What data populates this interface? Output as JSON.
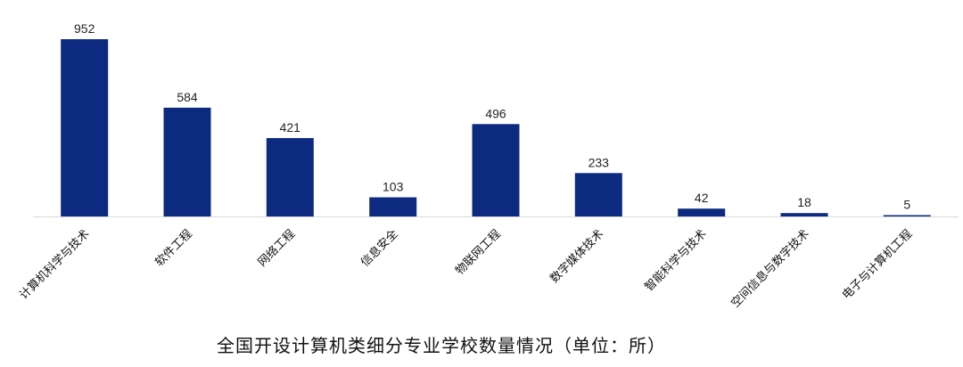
{
  "chart_data": {
    "type": "bar",
    "title": "全国开设计算机类细分专业学校数量情况（单位：所）",
    "xlabel": "",
    "ylabel": "",
    "categories": [
      "计算机科学与技术",
      "软件工程",
      "网络工程",
      "信息安全",
      "物联网工程",
      "数字媒体技术",
      "智能科学与技术",
      "空间信息与数字技术",
      "电子与计算机工程"
    ],
    "values": [
      952,
      584,
      421,
      103,
      496,
      233,
      42,
      18,
      5
    ],
    "ylim": [
      0,
      952
    ],
    "grid": false,
    "legend": "none",
    "bar_color": "#0c2a7f",
    "axis_color": "#d9d9d9"
  }
}
